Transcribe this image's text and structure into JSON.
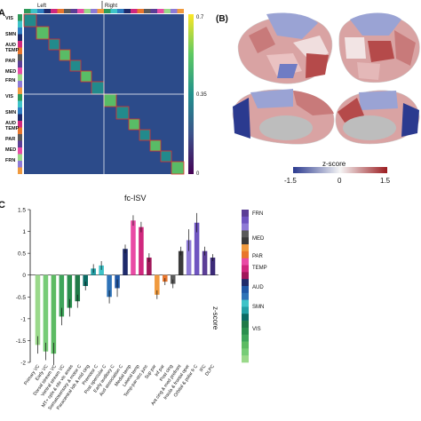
{
  "panel_labels": {
    "a": "A",
    "b": "(B)",
    "c": "C"
  },
  "matrix": {
    "hemi_left": "Left",
    "hemi_right": "Right",
    "network_labels_left": [
      "VIS",
      "SMN",
      "AUD",
      "TEMP",
      "PAR",
      "MED",
      "FRN"
    ],
    "network_labels_right": [
      "VIS",
      "SMN",
      "AUD",
      "TEMP",
      "PAR",
      "MED",
      "FRN"
    ],
    "colorbar_ticks": [
      "0.7",
      "0.35",
      "0"
    ],
    "colorbar_min": 0,
    "colorbar_max": 0.7
  },
  "brain": {
    "colorbar_title": "z-score",
    "colorbar_ticks": [
      "-1.5",
      "0",
      "1.5"
    ],
    "low_color": "#2b3a8f",
    "mid_color": "#f5f5f5",
    "high_color": "#9b1c20"
  },
  "network_colors": {
    "FRN": "#5b3e96",
    "MED": "#5a5a5a",
    "PAR": "#e8762d",
    "TEMP": "#d0287e",
    "AUD": "#1e2a6b",
    "SMN": "#2f7fc4",
    "VIS": "#2e9a5a"
  },
  "legend_networks": [
    "FRN",
    "MED",
    "PAR",
    "TEMP",
    "AUD",
    "SMN",
    "VIS"
  ],
  "chart_data": {
    "type": "bar",
    "title": "fc-ISV",
    "ylabel": "z-score",
    "ylim": [
      -2,
      1.5
    ],
    "yticks": [
      "1.5",
      "1",
      "0.5",
      "0",
      "-0.5",
      "-1",
      "-1.5",
      "-2"
    ],
    "categories": [
      "Primary VC",
      "Early VC",
      "Dorsal stream VC",
      "Ventral stream VC",
      "MT+ complex & nbr vis areas",
      "",
      "Somatosensory & motor C",
      "Paracentral & mid cing",
      "Premotor C",
      "Post opercular C",
      "Early auditory C",
      "Aud association C",
      "Medial temp",
      "Lateral temp",
      "Temp-par-occ junc",
      "Sup par",
      "Inf par",
      "Post cing",
      "Ant cing & med prefront",
      "Insula & frontal oper",
      "Orbital & P fr C",
      "IFC",
      "DLPC"
    ],
    "values": [
      -1.6,
      -1.75,
      -1.8,
      -0.95,
      -0.75,
      -0.6,
      -0.25,
      0.15,
      0.22,
      -0.5,
      -0.3,
      0.6,
      1.25,
      1.1,
      0.4,
      -0.45,
      -0.15,
      -0.2,
      0.55,
      0.8,
      1.2,
      0.55,
      0.4
    ],
    "errors": [
      0.2,
      0.2,
      0.25,
      0.2,
      0.2,
      0.15,
      0.1,
      0.1,
      0.1,
      0.15,
      0.2,
      0.1,
      0.12,
      0.12,
      0.1,
      0.1,
      0.08,
      0.1,
      0.1,
      0.25,
      0.22,
      0.1,
      0.08
    ],
    "colors": [
      "#9ad98a",
      "#77cc77",
      "#5dbb63",
      "#3ea55a",
      "#2a8f4e",
      "#207a48",
      "#0b6b64",
      "#23a0a6",
      "#3ec3c8",
      "#2e73b8",
      "#1f57a6",
      "#1e2a6b",
      "#e94ba5",
      "#d0287e",
      "#a1175a",
      "#f09a3e",
      "#e8762d",
      "#5a5a5a",
      "#3a3a3a",
      "#8e7ad6",
      "#6f55c0",
      "#5b3e96",
      "#3c2a78"
    ],
    "x_labels": [
      "Primary VC",
      "Early VC",
      "Dorsal stream VC",
      "Ventral stream VC",
      "MT+ cplx & nbr vis areas",
      "Somatosensory & motor C",
      "Paracentral lob & mid cing",
      "Premotor C",
      "Post opercular C",
      "Early auditory C",
      "Aud association C",
      "Medial temp",
      "Lateral temp",
      "Temp-par-occ junc",
      "Sup par",
      "Inf par",
      "Post cing",
      "Ant cing & med prefront",
      "Insula & frontal oper",
      "Orbital & polar fr C",
      "IFC",
      "DLPC"
    ]
  }
}
